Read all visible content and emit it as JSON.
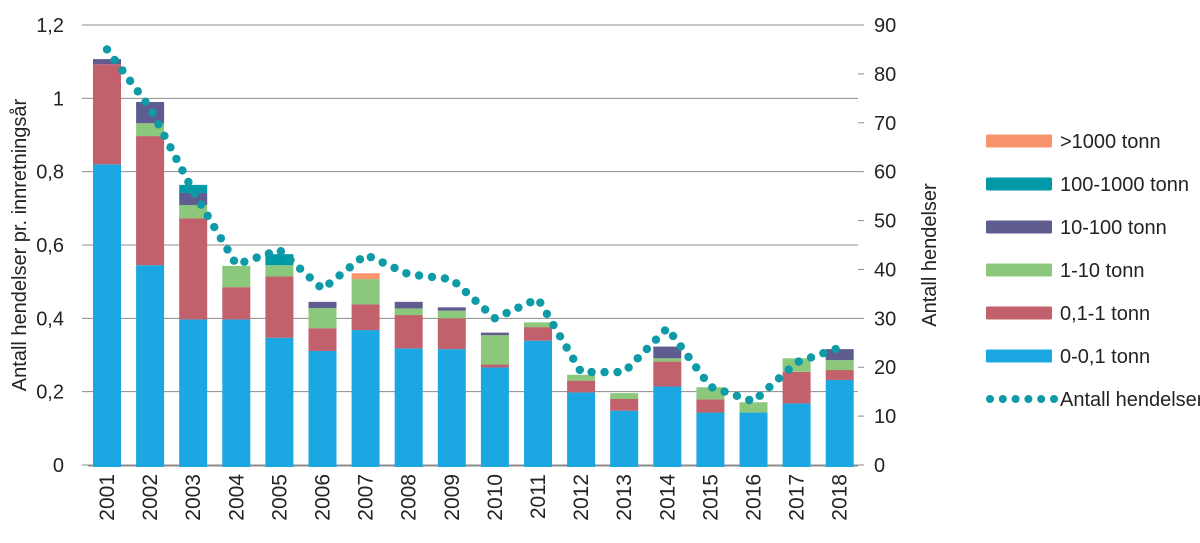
{
  "chart_data": {
    "type": "stacked-bar-with-line",
    "title": "",
    "categories": [
      "2001",
      "2002",
      "2003",
      "2004",
      "2005",
      "2006",
      "2007",
      "2008",
      "2009",
      "2010",
      "2011",
      "2012",
      "2013",
      "2014",
      "2015",
      "2016",
      "2017",
      "2018"
    ],
    "stacked_series": [
      {
        "name": "0-0,1 tonn",
        "color": "#1ba7e2",
        "values": [
          0.82,
          0.545,
          0.397,
          0.397,
          0.347,
          0.311,
          0.368,
          0.318,
          0.316,
          0.266,
          0.339,
          0.198,
          0.148,
          0.214,
          0.143,
          0.143,
          0.168,
          0.232
        ]
      },
      {
        "name": "0,1-1 tonn",
        "color": "#c2606c",
        "values": [
          0.273,
          0.352,
          0.276,
          0.088,
          0.167,
          0.062,
          0.07,
          0.091,
          0.084,
          0.008,
          0.037,
          0.032,
          0.032,
          0.068,
          0.036,
          0.0,
          0.086,
          0.027
        ]
      },
      {
        "name": "1-10 tonn",
        "color": "#8cc87c",
        "values": [
          0.0,
          0.035,
          0.036,
          0.058,
          0.031,
          0.055,
          0.069,
          0.018,
          0.021,
          0.08,
          0.013,
          0.016,
          0.016,
          0.009,
          0.033,
          0.028,
          0.037,
          0.027
        ]
      },
      {
        "name": "10-100 tonn",
        "color": "#5f5c8f",
        "values": [
          0.014,
          0.058,
          0.033,
          0.0,
          0.0,
          0.017,
          0.0,
          0.018,
          0.009,
          0.007,
          0.0,
          0.0,
          0.0,
          0.032,
          0.0,
          0.0,
          0.0,
          0.03
        ]
      },
      {
        "name": "100-1000 tonn",
        "color": "#009aa7",
        "values": [
          0.0,
          0.0,
          0.022,
          0.0,
          0.03,
          0.0,
          0.0,
          0.0,
          0.0,
          0.0,
          0.0,
          0.0,
          0.0,
          0.0,
          0.0,
          0.0,
          0.0,
          0.0
        ]
      },
      {
        "name": ">1000 tonn",
        "color": "#f7946c",
        "values": [
          0.0,
          0.0,
          0.0,
          0.0,
          0.0,
          0.0,
          0.016,
          0.0,
          0.0,
          0.0,
          0.0,
          0.0,
          0.0,
          0.0,
          0.0,
          0.0,
          0.0,
          0.0
        ]
      }
    ],
    "line_series": {
      "name": "Antall hendelser",
      "color": "#0e9aa6",
      "style": "dotted",
      "axis": "right",
      "values": [
        85,
        73,
        56,
        41,
        44,
        36,
        43,
        39,
        38,
        30,
        34,
        19,
        19,
        28,
        16,
        13,
        21,
        24
      ]
    },
    "left_axis": {
      "title": "Antall hendelser pr. innretningsår",
      "min": 0,
      "max": 1.2,
      "tick_values": [
        0,
        0.2,
        0.4,
        0.6,
        0.8,
        1,
        1.2
      ],
      "tick_labels": [
        "0",
        "0,2",
        "0,4",
        "0,6",
        "0,8",
        "1",
        "1,2"
      ]
    },
    "right_axis": {
      "title": "Antall hendelser",
      "min": 0,
      "max": 90,
      "tick_values": [
        0,
        10,
        20,
        30,
        40,
        50,
        60,
        70,
        80,
        90
      ],
      "tick_labels": [
        "0",
        "10",
        "20",
        "30",
        "40",
        "50",
        "60",
        "70",
        "80",
        "90"
      ]
    },
    "legend": [
      {
        "label": ">1000 tonn",
        "marker": "rect",
        "color": "#f7946c"
      },
      {
        "label": "100-1000 tonn",
        "marker": "rect",
        "color": "#009aa7"
      },
      {
        "label": "10-100 tonn",
        "marker": "rect",
        "color": "#5f5c8f"
      },
      {
        "label": "1-10 tonn",
        "marker": "rect",
        "color": "#8cc87c"
      },
      {
        "label": "0,1-1 tonn",
        "marker": "rect",
        "color": "#c2606c"
      },
      {
        "label": "0-0,1 tonn",
        "marker": "rect",
        "color": "#1ba7e2"
      },
      {
        "label": "Antall hendelser",
        "marker": "dots",
        "color": "#0e9aa6"
      }
    ],
    "grid": true,
    "legend_position": "right",
    "colors": {
      "grid": "#8b8b8b",
      "axis": "#8b8b8b",
      "text": "#262223",
      "background": "#ffffff"
    }
  }
}
